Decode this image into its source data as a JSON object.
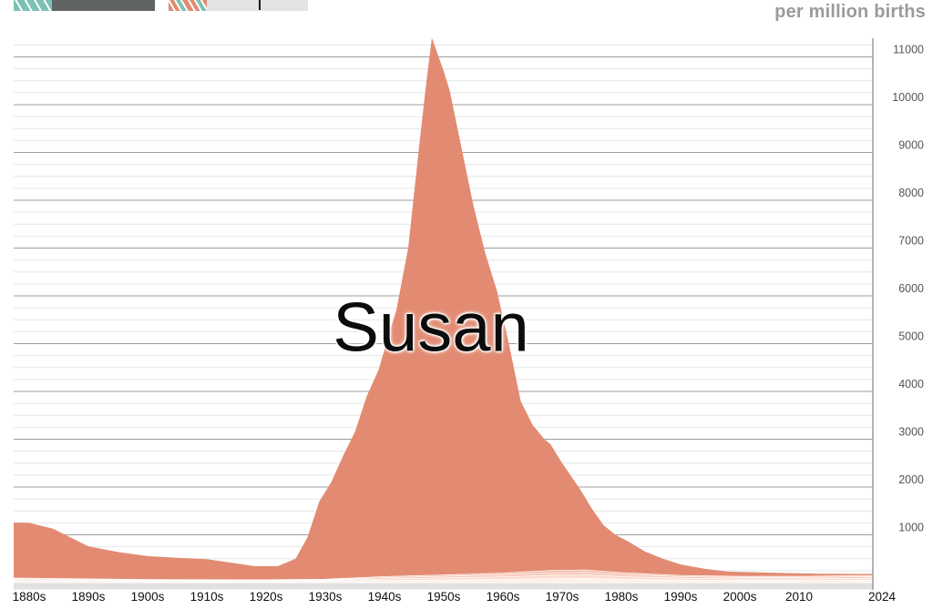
{
  "header": {
    "unit_label": "per million births",
    "chips": [
      {
        "swatch": "teal-white-diagonal-stripes",
        "box_color": "#5f6364"
      },
      {
        "swatch": "coral-teal-diagonal-stripes",
        "box_color": "#e3e3e3",
        "text_cursor": true
      }
    ]
  },
  "colors": {
    "susan_area": "#e28b72",
    "minor_bands_bottom_to_top": [
      "#fdf0e9",
      "#fadacc",
      "#f6c6b4",
      "#f2b09a"
    ],
    "band_separator": "#ffffff",
    "grid_minor": "#e6e6e6",
    "grid_major": "#9c9c9c",
    "axis_line": "#9c9c9c",
    "axis_bar": "#e3e1df",
    "y_tick_text": "#555555",
    "x_tick_text": "#0f0f0f",
    "unit_text": "#9b9b9b",
    "name_label_text": "#0c0c0c"
  },
  "chart_data": {
    "type": "area",
    "title": "",
    "ylabel": "per million births",
    "x_range": [
      1880,
      2024
    ],
    "y_range": [
      0,
      11450
    ],
    "y_major_step": 1000,
    "y_minor_step": 250,
    "y_major_ticks": [
      1000,
      2000,
      3000,
      4000,
      5000,
      6000,
      7000,
      8000,
      9000,
      10000,
      11000
    ],
    "grid": "on",
    "legend": "none",
    "x_ticks": [
      {
        "year": 1880,
        "label": "1880s"
      },
      {
        "year": 1890,
        "label": "1890s"
      },
      {
        "year": 1900,
        "label": "1900s"
      },
      {
        "year": 1910,
        "label": "1910s"
      },
      {
        "year": 1920,
        "label": "1920s"
      },
      {
        "year": 1930,
        "label": "1930s"
      },
      {
        "year": 1940,
        "label": "1940s"
      },
      {
        "year": 1950,
        "label": "1950s"
      },
      {
        "year": 1960,
        "label": "1960s"
      },
      {
        "year": 1970,
        "label": "1970s"
      },
      {
        "year": 1980,
        "label": "1980s"
      },
      {
        "year": 1990,
        "label": "1990s"
      },
      {
        "year": 2000,
        "label": "2000s"
      },
      {
        "year": 2010,
        "label": "2010"
      },
      {
        "year": 2024,
        "label": "2024"
      }
    ],
    "series": [
      {
        "name": "Susan",
        "color": "#e28b72",
        "peak": {
          "year": 1948,
          "value": 11400
        },
        "x": [
          1877,
          1880,
          1884,
          1890,
          1895,
          1900,
          1905,
          1910,
          1914,
          1918,
          1922,
          1925,
          1927,
          1929,
          1931,
          1933,
          1935,
          1937,
          1939,
          1941,
          1942,
          1944,
          1946,
          1947,
          1948,
          1950,
          1951,
          1953,
          1955,
          1957,
          1959,
          1961,
          1963,
          1965,
          1967,
          1968,
          1970,
          1973,
          1975,
          1977,
          1979,
          1981,
          1984,
          1987,
          1990,
          1994,
          1998,
          2003,
          2008,
          2014,
          2020,
          2024
        ],
        "values": [
          1260,
          1250,
          1130,
          760,
          640,
          555,
          520,
          490,
          420,
          345,
          345,
          500,
          950,
          1700,
          2100,
          2650,
          3150,
          3900,
          4450,
          5300,
          5700,
          7000,
          9300,
          10400,
          11400,
          10700,
          10300,
          9100,
          7900,
          6900,
          6100,
          5000,
          3800,
          3300,
          3000,
          2900,
          2500,
          1960,
          1550,
          1200,
          1000,
          870,
          650,
          500,
          380,
          290,
          230,
          215,
          200,
          185,
          180,
          190
        ]
      }
    ],
    "minor_series": {
      "note_x": [
        1877,
        1900,
        1920,
        1930,
        1940,
        1950,
        1960,
        1968,
        1974,
        1980,
        1990,
        2000,
        2010,
        2024
      ],
      "bands_bottom_to_top": [
        {
          "color": "#fdf0e9",
          "values": [
            32,
            21,
            20,
            24,
            43,
            54,
            68,
            85,
            90,
            70,
            51,
            44,
            44,
            51
          ]
        },
        {
          "color": "#fadacc",
          "values": [
            26,
            17,
            16,
            19,
            34,
            43,
            54,
            68,
            72,
            55,
            41,
            35,
            35,
            41
          ]
        },
        {
          "color": "#f6c6b4",
          "values": [
            21,
            14,
            13,
            15,
            28,
            35,
            44,
            55,
            58,
            45,
            33,
            29,
            29,
            33
          ]
        },
        {
          "color": "#f2b09a",
          "values": [
            16,
            11,
            10,
            12,
            21,
            27,
            34,
            43,
            45,
            35,
            26,
            22,
            22,
            26
          ]
        }
      ]
    }
  }
}
